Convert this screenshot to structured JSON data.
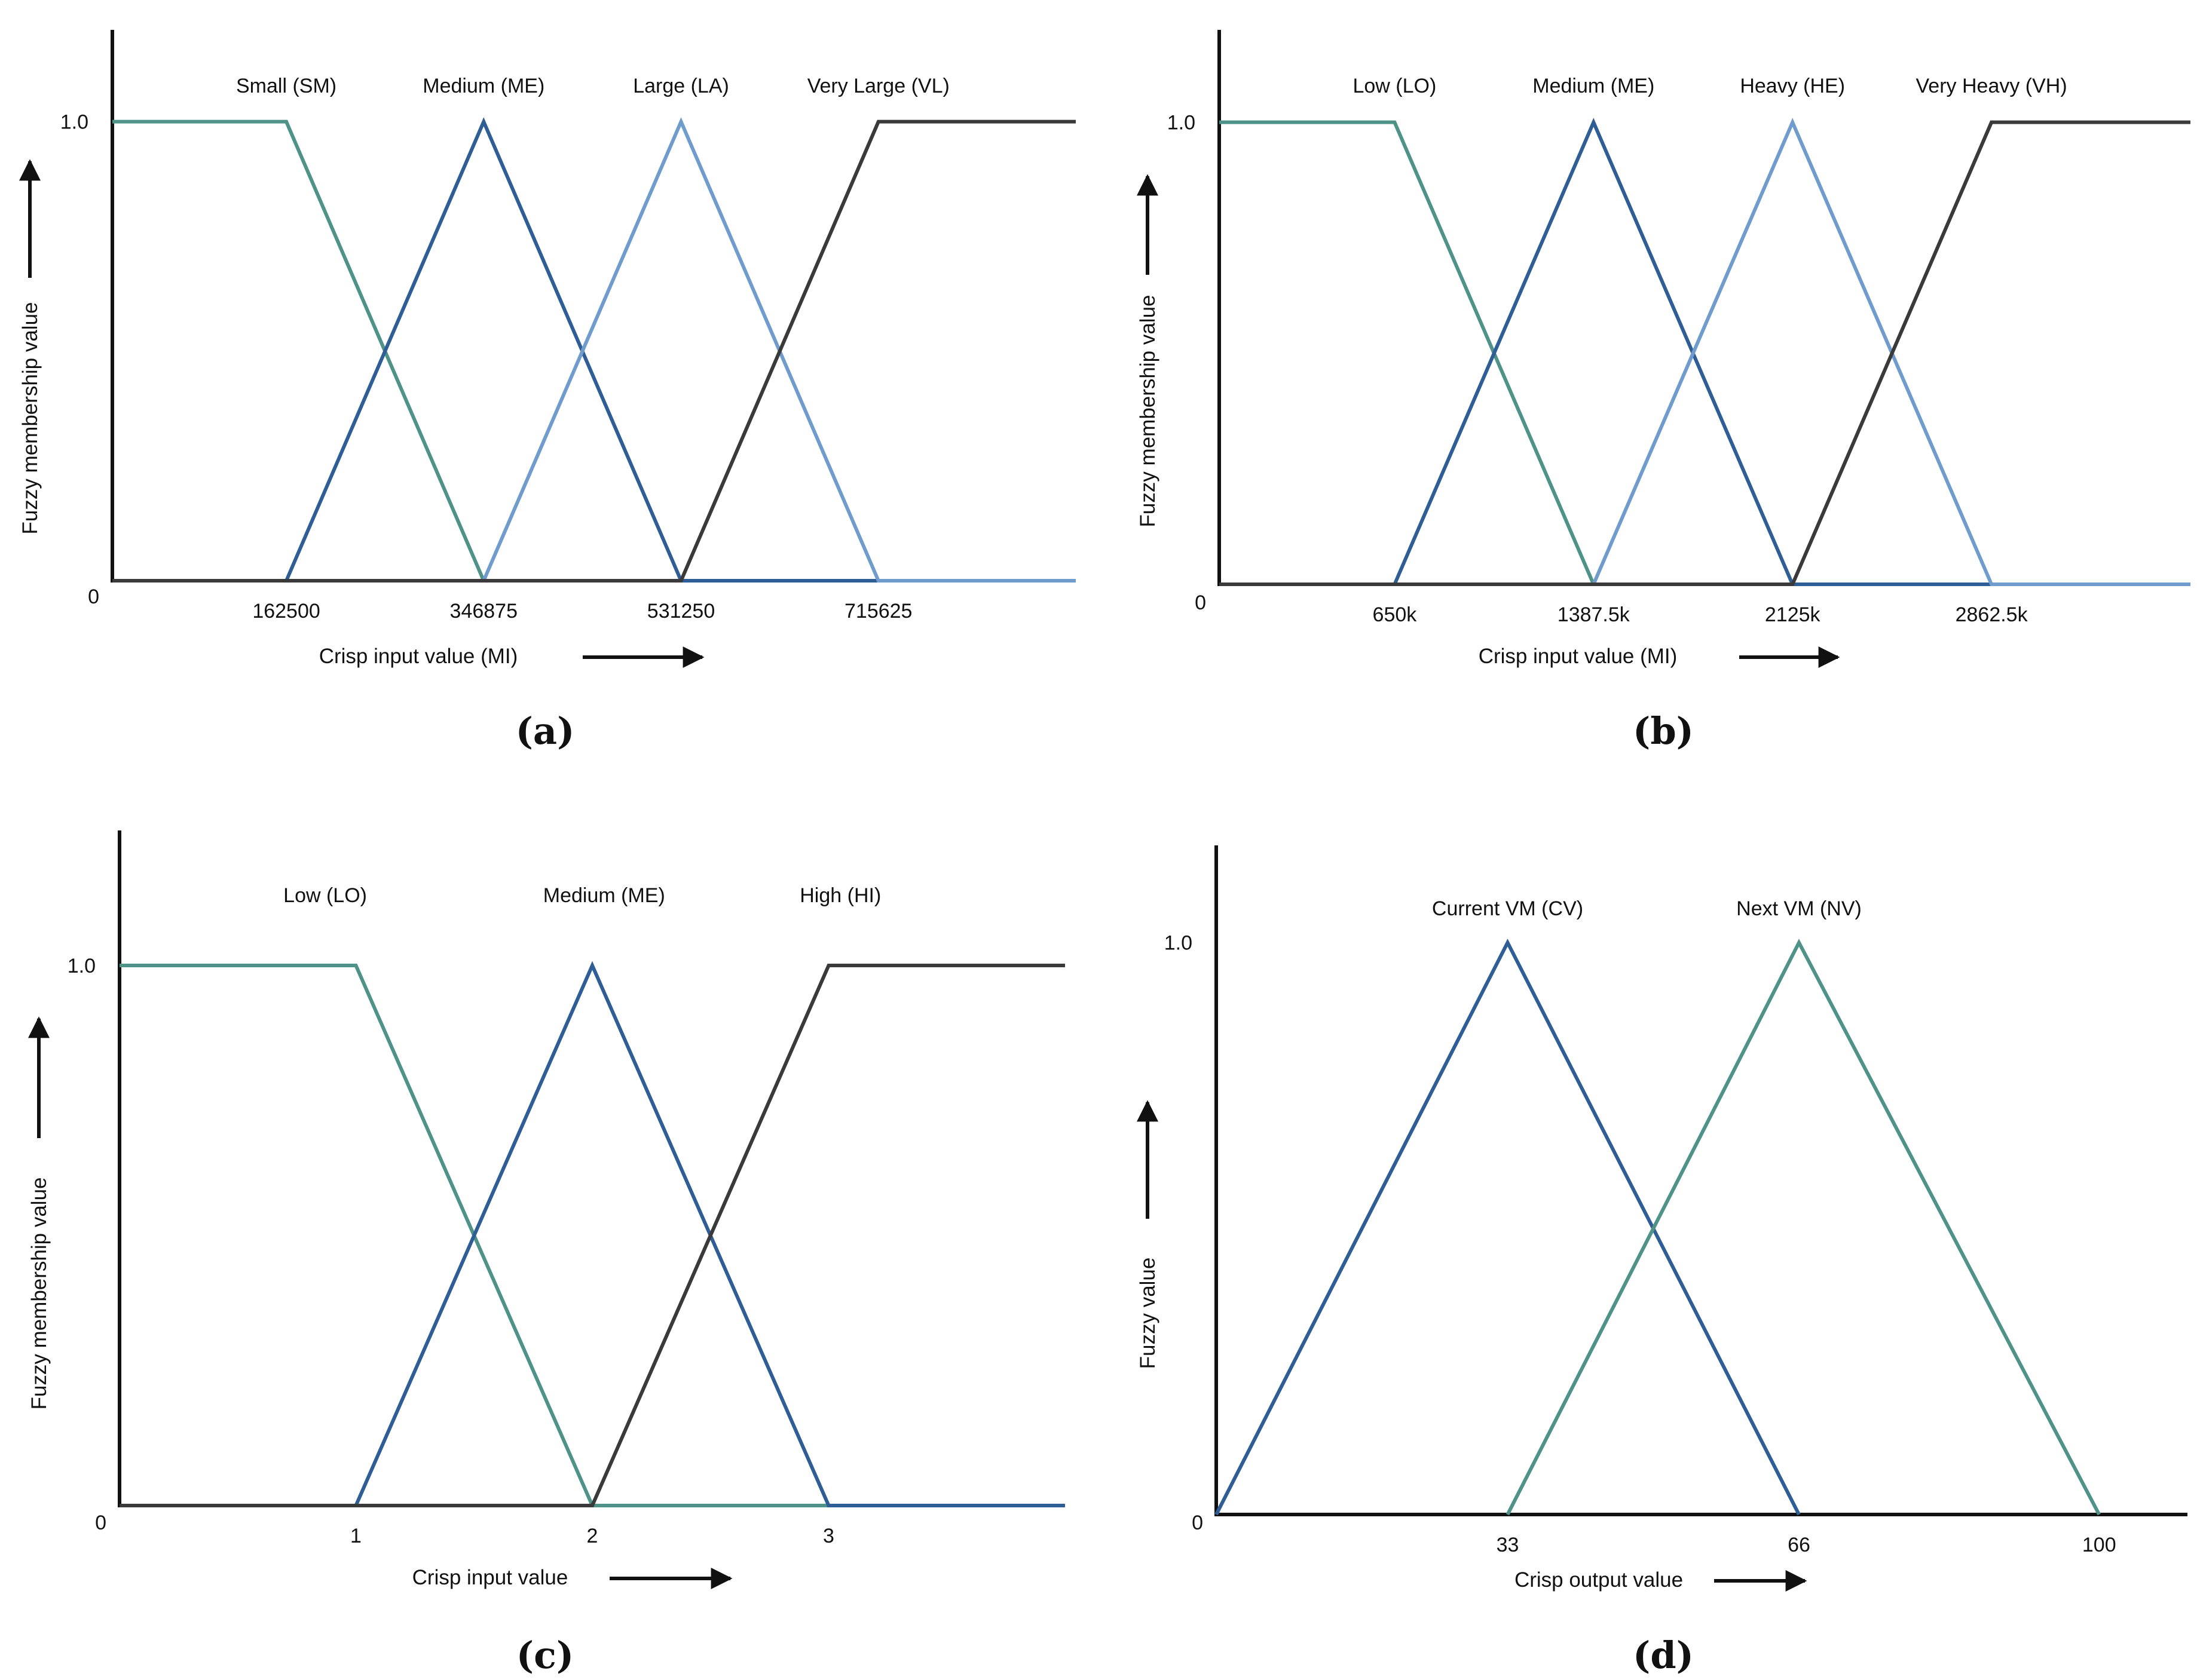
{
  "colors": {
    "teal": "#4e9288",
    "blue": "#2f5e96",
    "light_blue": "#6f9ccd",
    "dark": "#3a3a3a",
    "axis": "#111111"
  },
  "chart_data": [
    {
      "type": "line",
      "panel_label": "(a)",
      "xlabel": "Crisp input value (MI)",
      "ylabel": "Fuzzy membership value",
      "x_ticks": [
        162500,
        346875,
        531250,
        715625
      ],
      "x_tick_labels": [
        "162500",
        "346875",
        "531250",
        "715625"
      ],
      "xlim": [
        0,
        900000
      ],
      "ylim": [
        0,
        1.2
      ],
      "y_tick_labels": {
        "zero": "0",
        "one": "1.0"
      },
      "series": [
        {
          "name": "Small (SM)",
          "color": "teal",
          "x": [
            0,
            162500,
            346875,
            900000
          ],
          "y": [
            1,
            1,
            0,
            0
          ]
        },
        {
          "name": "Medium (ME)",
          "color": "blue",
          "x": [
            0,
            162500,
            346875,
            531250,
            900000
          ],
          "y": [
            0,
            0,
            1,
            0,
            0
          ]
        },
        {
          "name": "Large (LA)",
          "color": "light_blue",
          "x": [
            0,
            346875,
            531250,
            715625,
            900000
          ],
          "y": [
            0,
            0,
            1,
            0,
            0
          ]
        },
        {
          "name": "Very Large (VL)",
          "color": "dark",
          "x": [
            0,
            531250,
            715625,
            900000
          ],
          "y": [
            0,
            0,
            1,
            1
          ]
        }
      ],
      "label_x": [
        162500,
        346875,
        531250,
        715625
      ]
    },
    {
      "type": "line",
      "panel_label": "(b)",
      "xlabel": "Crisp input value (MI)",
      "ylabel": "Fuzzy membership value",
      "x_ticks": [
        650,
        1387.5,
        2125,
        2862.5
      ],
      "x_tick_labels": [
        "650k",
        "1387.5k",
        "2125k",
        "2862.5k"
      ],
      "xlim": [
        0,
        3600
      ],
      "ylim": [
        0,
        1.2
      ],
      "y_tick_labels": {
        "zero": "0",
        "one": "1.0"
      },
      "series": [
        {
          "name": "Low (LO)",
          "color": "teal",
          "x": [
            0,
            650,
            1387.5,
            3600
          ],
          "y": [
            1,
            1,
            0,
            0
          ]
        },
        {
          "name": "Medium (ME)",
          "color": "blue",
          "x": [
            0,
            650,
            1387.5,
            2125,
            3600
          ],
          "y": [
            0,
            0,
            1,
            0,
            0
          ]
        },
        {
          "name": "Heavy (HE)",
          "color": "light_blue",
          "x": [
            0,
            1387.5,
            2125,
            2862.5,
            3600
          ],
          "y": [
            0,
            0,
            1,
            0,
            0
          ]
        },
        {
          "name": "Very Heavy (VH)",
          "color": "dark",
          "x": [
            0,
            2125,
            2862.5,
            3600
          ],
          "y": [
            0,
            0,
            1,
            1
          ]
        }
      ],
      "label_x": [
        650,
        1387.5,
        2125,
        2862.5
      ]
    },
    {
      "type": "line",
      "panel_label": "(c)",
      "xlabel": "Crisp input value",
      "ylabel": "Fuzzy membership value",
      "x_ticks": [
        1,
        2,
        3
      ],
      "x_tick_labels": [
        "1",
        "2",
        "3"
      ],
      "xlim": [
        0,
        4
      ],
      "ylim": [
        0,
        1.25
      ],
      "y_tick_labels": {
        "zero": "0",
        "one": "1.0"
      },
      "series": [
        {
          "name": "Low (LO)",
          "color": "teal",
          "x": [
            0,
            1,
            2,
            4
          ],
          "y": [
            1,
            1,
            0,
            0
          ]
        },
        {
          "name": "Medium (ME)",
          "color": "blue",
          "x": [
            0,
            1,
            2,
            3,
            4
          ],
          "y": [
            0,
            0,
            1,
            0,
            0
          ]
        },
        {
          "name": "High (HI)",
          "color": "dark",
          "x": [
            0,
            2,
            3,
            4
          ],
          "y": [
            0,
            0,
            1,
            1
          ]
        }
      ],
      "label_x": [
        0.87,
        2.05,
        3.05
      ]
    },
    {
      "type": "line",
      "panel_label": "(d)",
      "xlabel": "Crisp output value",
      "ylabel": "Fuzzy value",
      "x_ticks": [
        33,
        66,
        100
      ],
      "x_tick_labels": [
        "33",
        "66",
        "100"
      ],
      "xlim": [
        0,
        110
      ],
      "ylim": [
        0,
        1.17
      ],
      "y_tick_labels": {
        "zero": "0",
        "one": "1.0"
      },
      "series": [
        {
          "name": "Current VM (CV)",
          "color": "blue",
          "x": [
            0,
            33,
            66
          ],
          "y": [
            0,
            1,
            0
          ]
        },
        {
          "name": "Next VM (NV)",
          "color": "teal",
          "x": [
            33,
            66,
            100
          ],
          "y": [
            0,
            1,
            0
          ]
        }
      ],
      "label_x": [
        33,
        66
      ]
    }
  ]
}
